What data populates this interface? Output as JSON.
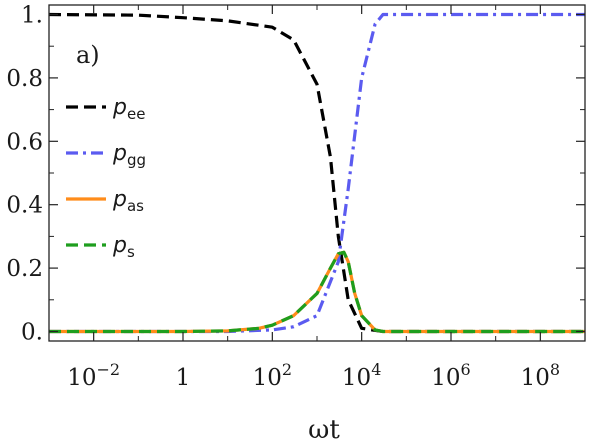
{
  "chart_data": {
    "type": "line",
    "panel_label": "a)",
    "xlabel": "ωt",
    "ylabel": "",
    "x_scale": "log",
    "xlim": [
      0.001,
      1000000000
    ],
    "ylim": [
      -0.03,
      1.03
    ],
    "x_ticks": [
      {
        "value": 0.01,
        "base": "10",
        "exp": "−2"
      },
      {
        "value": 1,
        "base": "1",
        "exp": ""
      },
      {
        "value": 100,
        "base": "10",
        "exp": "2"
      },
      {
        "value": 10000,
        "base": "10",
        "exp": "4"
      },
      {
        "value": 1000000,
        "base": "10",
        "exp": "6"
      },
      {
        "value": 100000000,
        "base": "10",
        "exp": "8"
      }
    ],
    "y_ticks": [
      {
        "value": 0.0,
        "label": "0."
      },
      {
        "value": 0.2,
        "label": "0.2"
      },
      {
        "value": 0.4,
        "label": "0.4"
      },
      {
        "value": 0.6,
        "label": "0.6"
      },
      {
        "value": 0.8,
        "label": "0.8"
      },
      {
        "value": 1.0,
        "label": "1."
      }
    ],
    "legend_position": "top-left",
    "grid": false,
    "series": [
      {
        "name": "p",
        "subscript": "ee",
        "sub_italic": false,
        "color": "#000000",
        "dash": "12,6",
        "x": [
          0.001,
          0.1,
          1,
          10,
          100,
          300,
          1000,
          2000,
          3000,
          5000,
          10000,
          30000,
          1000000000
        ],
        "y": [
          1.0,
          0.998,
          0.99,
          0.98,
          0.96,
          0.92,
          0.78,
          0.55,
          0.3,
          0.1,
          0.01,
          0.0,
          0.0
        ]
      },
      {
        "name": "p",
        "subscript": "gg",
        "sub_italic": false,
        "color": "#5b5bf0",
        "dash": "12,5,3,5",
        "x": [
          0.001,
          1,
          10,
          100,
          300,
          1000,
          3000,
          5000,
          10000,
          20000,
          30000,
          50000,
          1000000000
        ],
        "y": [
          0.0,
          0.0,
          0.0,
          0.005,
          0.015,
          0.05,
          0.22,
          0.45,
          0.8,
          0.97,
          1.0,
          1.0,
          1.0
        ]
      },
      {
        "name": "p",
        "subscript": "as",
        "sub_italic": false,
        "color": "#ff8c1a",
        "dash": "",
        "x": [
          0.001,
          1,
          10,
          50,
          100,
          300,
          1000,
          2000,
          3000,
          4000,
          5000,
          7000,
          10000,
          20000,
          30000,
          1000000000
        ],
        "y": [
          0.0,
          0.0,
          0.002,
          0.01,
          0.02,
          0.05,
          0.12,
          0.2,
          0.245,
          0.25,
          0.22,
          0.12,
          0.05,
          0.005,
          0.0,
          0.0
        ]
      },
      {
        "name": "p",
        "subscript": "s",
        "sub_italic": true,
        "color": "#1e9e1e",
        "dash": "12,6",
        "x": [
          0.001,
          1,
          10,
          50,
          100,
          300,
          1000,
          2000,
          3000,
          4000,
          5000,
          7000,
          10000,
          20000,
          30000,
          1000000000
        ],
        "y": [
          0.0,
          0.0,
          0.002,
          0.01,
          0.02,
          0.05,
          0.12,
          0.2,
          0.245,
          0.25,
          0.22,
          0.12,
          0.05,
          0.005,
          0.0,
          0.0
        ]
      }
    ]
  }
}
